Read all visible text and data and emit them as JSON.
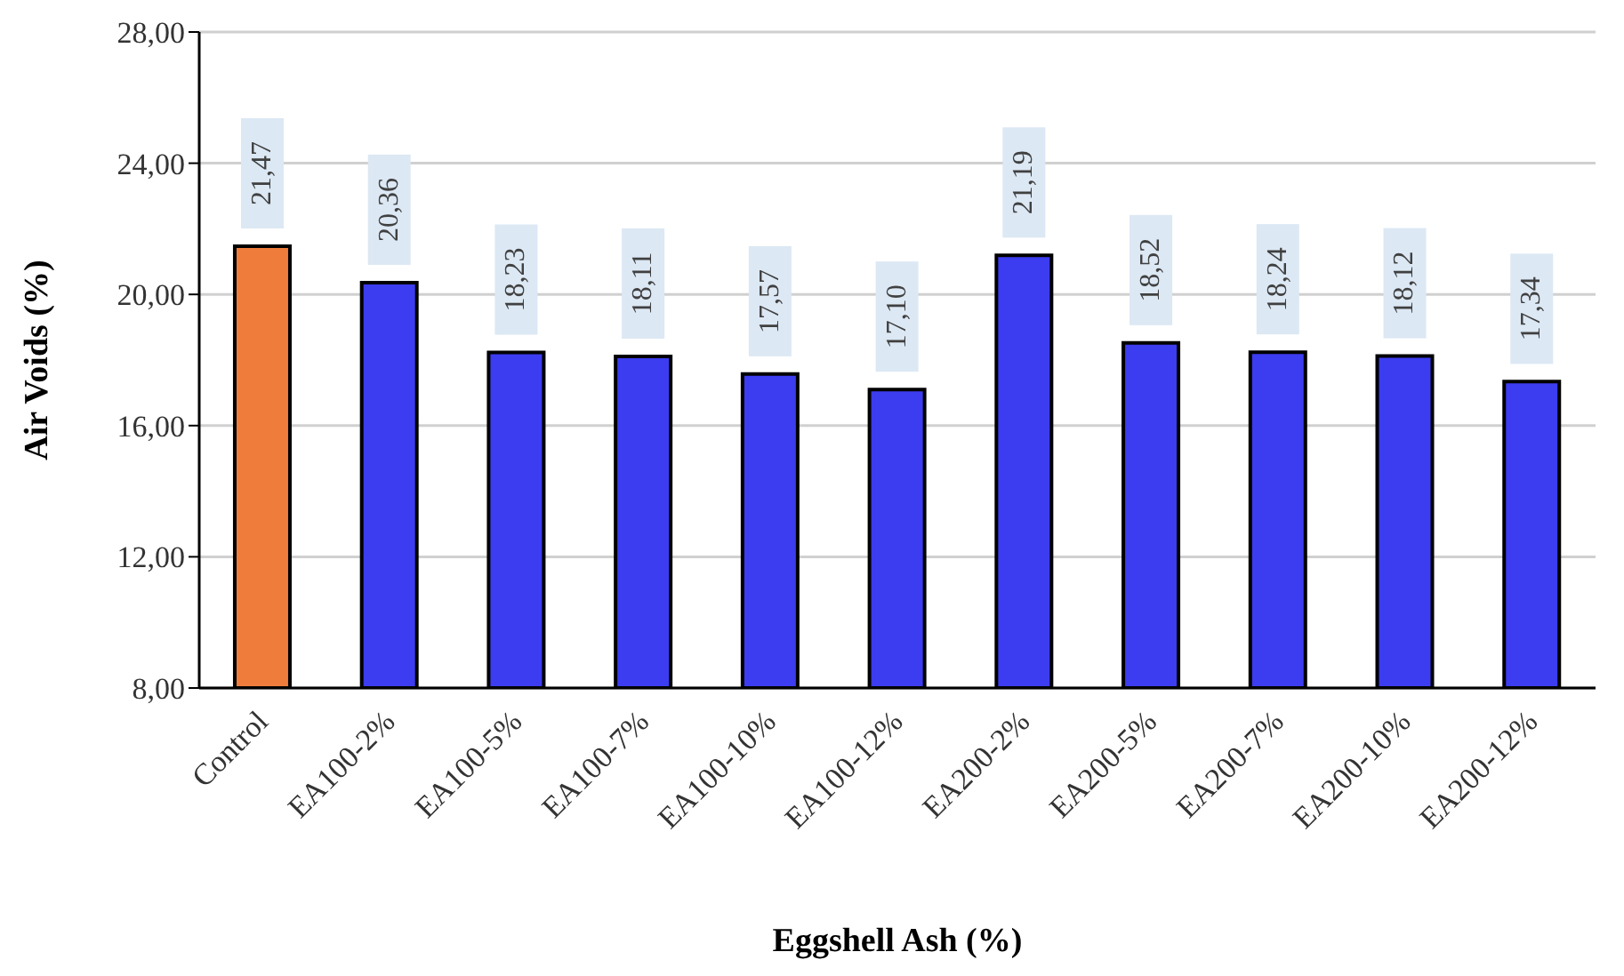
{
  "chart_data": {
    "type": "bar",
    "xlabel": "Eggshell Ash (%)",
    "ylabel": "Air Voids (%)",
    "categories": [
      "Control",
      "EA100-2%",
      "EA100-5%",
      "EA100-7%",
      "EA100-10%",
      "EA100-12%",
      "EA200-2%",
      "EA200-5%",
      "EA200-7%",
      "EA200-10%",
      "EA200-12%"
    ],
    "values": [
      21.47,
      20.36,
      18.23,
      18.11,
      17.57,
      17.1,
      21.19,
      18.52,
      18.24,
      18.12,
      17.34
    ],
    "value_labels": [
      "21,47",
      "20,36",
      "18,23",
      "18,11",
      "17,57",
      "17,10",
      "21,19",
      "18,52",
      "18,24",
      "18,12",
      "17,34"
    ],
    "colors": [
      "#f07c3c",
      "#3c3cf0",
      "#3c3cf0",
      "#3c3cf0",
      "#3c3cf0",
      "#3c3cf0",
      "#3c3cf0",
      "#3c3cf0",
      "#3c3cf0",
      "#3c3cf0",
      "#3c3cf0"
    ],
    "ylim": [
      8,
      28
    ],
    "yticks": [
      {
        "value": 8,
        "label": "8,00"
      },
      {
        "value": 12,
        "label": "12,00"
      },
      {
        "value": 16,
        "label": "16,00"
      },
      {
        "value": 20,
        "label": "20,00"
      },
      {
        "value": 24,
        "label": "24,00"
      },
      {
        "value": 28,
        "label": "28,00"
      }
    ],
    "grid": "y",
    "legend": false
  }
}
